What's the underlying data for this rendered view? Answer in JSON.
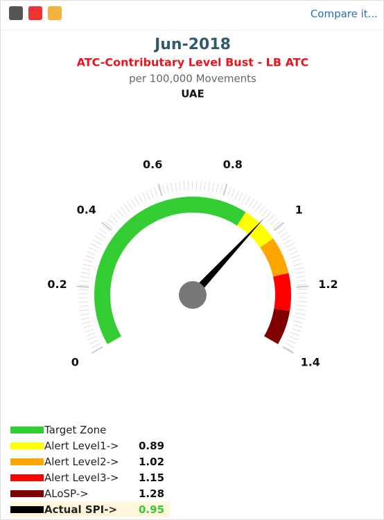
{
  "toolbar": {
    "link": "Compare it..."
  },
  "chart_data": {
    "type": "gauge",
    "title": "Jun-2018",
    "subtitle": "ATC-Contributary Level Bust - LB ATC",
    "unit_label": "per 100,000 Movements",
    "region": "UAE",
    "xlim": [
      0,
      1.4
    ],
    "xticks": [
      0,
      0.2,
      0.4,
      0.6,
      0.8,
      1,
      1.2,
      1.4
    ],
    "bands": [
      {
        "name": "Target Zone",
        "color": "#33cc33"
      },
      {
        "name": "Alert Level1->",
        "color": "#ffff00",
        "value": 0.89
      },
      {
        "name": "Alert Level2->",
        "color": "#ffa500",
        "value": 1.02
      },
      {
        "name": "Alert Level3->",
        "color": "#ff0000",
        "value": 1.15
      },
      {
        "name": "ALoSP->",
        "color": "#800000",
        "value": 1.28
      }
    ],
    "needle": {
      "name": "Actual SPI->",
      "color": "#000000",
      "value": 0.95,
      "value_color": "#33cc33"
    }
  }
}
